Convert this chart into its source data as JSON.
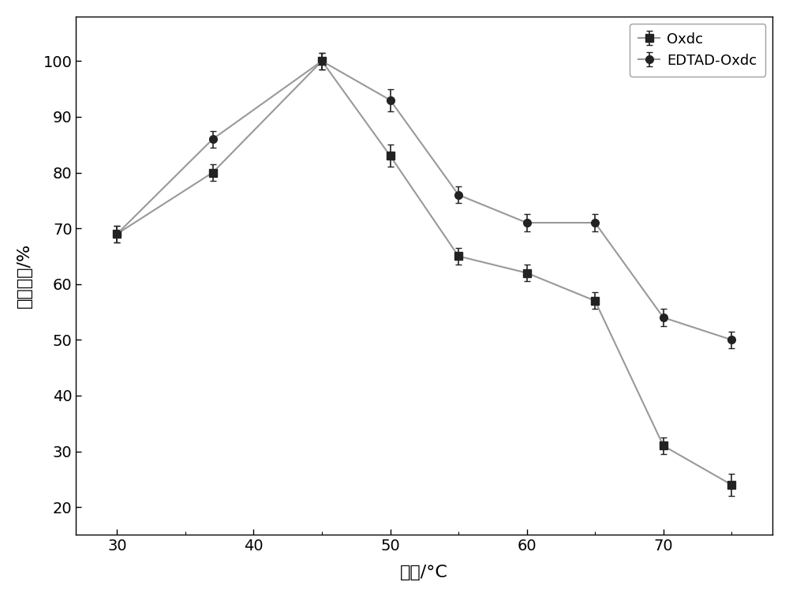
{
  "x": [
    30,
    37,
    45,
    50,
    55,
    60,
    65,
    70,
    75
  ],
  "oxdc_y": [
    69,
    80,
    100,
    83,
    65,
    62,
    57,
    31,
    24
  ],
  "edtad_y": [
    69,
    86,
    100,
    93,
    76,
    71,
    71,
    54,
    50
  ],
  "oxdc_yerr": [
    1.5,
    1.5,
    1.5,
    2.0,
    1.5,
    1.5,
    1.5,
    1.5,
    2.0
  ],
  "edtad_yerr": [
    1.5,
    1.5,
    1.5,
    2.0,
    1.5,
    1.5,
    1.5,
    1.5,
    1.5
  ],
  "xlabel": "温度/°C",
  "ylabel": "相对酶活/%",
  "xlim": [
    27,
    78
  ],
  "ylim": [
    15,
    108
  ],
  "xticks": [
    30,
    40,
    50,
    60,
    70
  ],
  "yticks": [
    20,
    30,
    40,
    50,
    60,
    70,
    80,
    90,
    100
  ],
  "legend_oxdc": "Oxdc",
  "legend_edtad": "EDTAD-Oxdc",
  "line_color": "#999999",
  "marker_color": "#222222",
  "background_color": "#ffffff",
  "figure_bg": "#ffffff"
}
